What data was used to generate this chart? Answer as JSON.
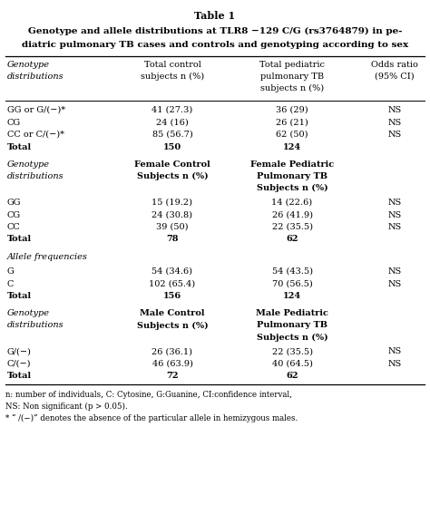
{
  "title_line1": "Table 1",
  "title_line2": "Genotype and allele distributions at TLR8 −129 C/G (rs3764879) in pe-",
  "title_line3": "diatric pulmonary TB cases and controls and genotyping according to sex",
  "col_headers_col0": [
    "Genotype",
    "distributions"
  ],
  "col_headers_col1": [
    "Total control",
    "subjects n (%)"
  ],
  "col_headers_col2": [
    "Total pediatric",
    "pulmonary TB",
    "subjects n (%)"
  ],
  "col_headers_col3": [
    "Odds ratio",
    "(95% CI)"
  ],
  "sections": [
    {
      "sec_header": null,
      "rows": [
        [
          "GG or G/(−)*",
          "41 (27.3)",
          "36 (29)",
          "NS"
        ],
        [
          "CG",
          "24 (16)",
          "26 (21)",
          "NS"
        ],
        [
          "CC or C/(−)*",
          "85 (56.7)",
          "62 (50)",
          "NS"
        ],
        [
          "Total",
          "150",
          "124",
          ""
        ]
      ]
    },
    {
      "sec_header": [
        [
          "Genotype",
          "distributions"
        ],
        [
          "Female Control",
          "Subjects n (%)"
        ],
        [
          "Female Pediatric",
          "Pulmonary TB",
          "Subjects n (%)"
        ],
        []
      ],
      "rows": [
        [
          "GG",
          "15 (19.2)",
          "14 (22.6)",
          "NS"
        ],
        [
          "CG",
          "24 (30.8)",
          "26 (41.9)",
          "NS"
        ],
        [
          "CC",
          "39 (50)",
          "22 (35.5)",
          "NS"
        ],
        [
          "Total",
          "78",
          "62",
          ""
        ]
      ]
    },
    {
      "sec_header": [
        [
          "Allele frequencies"
        ],
        [],
        [],
        []
      ],
      "rows": [
        [
          "G",
          "54 (34.6)",
          "54 (43.5)",
          "NS"
        ],
        [
          "C",
          "102 (65.4)",
          "70 (56.5)",
          "NS"
        ],
        [
          "Total",
          "156",
          "124",
          ""
        ]
      ]
    },
    {
      "sec_header": [
        [
          "Genotype",
          "distributions"
        ],
        [
          "Male Control",
          "Subjects n (%)"
        ],
        [
          "Male Pediatric",
          "Pulmonary TB",
          "Subjects n (%)"
        ],
        []
      ],
      "rows": [
        [
          "G/(−)",
          "26 (36.1)",
          "22 (35.5)",
          "NS"
        ],
        [
          "C/(−)",
          "46 (63.9)",
          "40 (64.5)",
          "NS"
        ],
        [
          "Total",
          "72",
          "62",
          ""
        ]
      ]
    }
  ],
  "footnote1": "n: number of individuals, C: Cytosine, G:Guanine, CI:confidence interval,",
  "footnote2": "NS: Non significant (p > 0.05).",
  "footnote3": "* “ /(−)” denotes the absence of the particular allele in hemizygous males.",
  "bg_color": "#ffffff",
  "text_color": "#000000"
}
